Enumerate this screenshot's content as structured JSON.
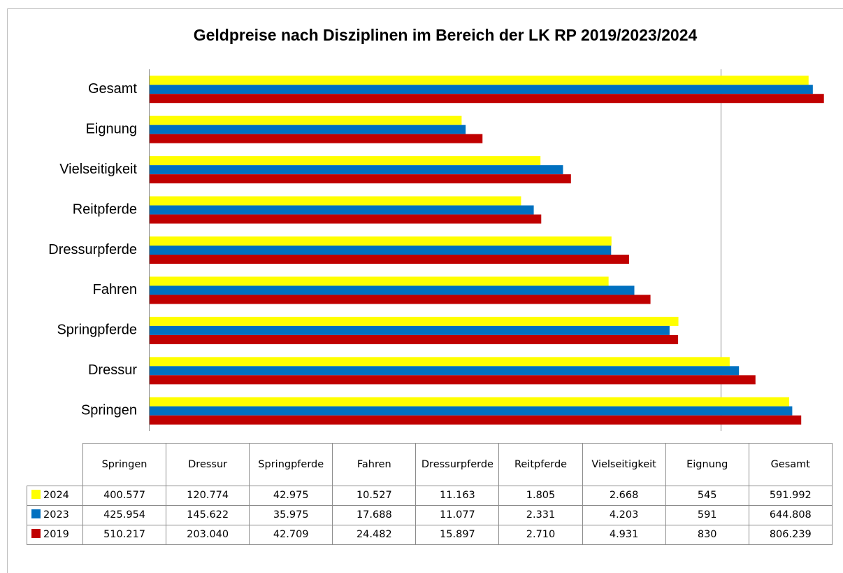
{
  "chart_data": {
    "type": "bar",
    "orientation": "horizontal",
    "title": "Geldpreise nach Disziplinen im Bereich der LK RP 2019/2023/2024",
    "categories": [
      "Springen",
      "Dressur",
      "Springpferde",
      "Fahren",
      "Dressurpferde",
      "Reitpferde",
      "Vielseitigkeit",
      "Eignung",
      "Gesamt"
    ],
    "series": [
      {
        "name": "2024",
        "color": "#ffff00",
        "values": [
          400577,
          120774,
          42975,
          10527,
          11163,
          1805,
          2668,
          545,
          591992
        ],
        "value_labels": [
          "400.577",
          "120.774",
          "42.975",
          "10.527",
          "11.163",
          "1.805",
          "2.668",
          "545",
          "591.992"
        ]
      },
      {
        "name": "2023",
        "color": "#0070c0",
        "values": [
          425954,
          145622,
          35975,
          17688,
          11077,
          2331,
          4203,
          591,
          644808
        ],
        "value_labels": [
          "425.954",
          "145.622",
          "35.975",
          "17.688",
          "11.077",
          "2.331",
          "4.203",
          "591",
          "644.808"
        ]
      },
      {
        "name": "2019",
        "color": "#c00000",
        "values": [
          510217,
          203040,
          42709,
          24482,
          15897,
          2710,
          4931,
          830,
          806239
        ],
        "value_labels": [
          "510.217",
          "203.040",
          "42.709",
          "24.482",
          "15.897",
          "2.710",
          "4.931",
          "830",
          "806.239"
        ]
      }
    ],
    "xlim": [
      1,
      1000000
    ],
    "xticks": [
      100000
    ],
    "log_scale": true,
    "grid": true,
    "data_table": true
  }
}
